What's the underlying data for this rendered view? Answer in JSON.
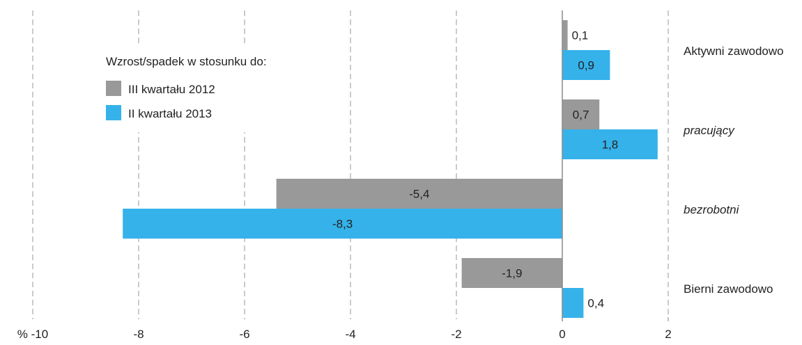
{
  "chart_data": {
    "type": "bar",
    "orientation": "horizontal",
    "categories": [
      "Aktywni zawodowo",
      "pracujący",
      "bezrobotni",
      "Bierni zawodowo"
    ],
    "category_italic": [
      false,
      true,
      true,
      false
    ],
    "legend_title": "Wzrost/spadek w stosunku do:",
    "series": [
      {
        "name": "III kwartału 2012",
        "color": "#999999",
        "values": [
          0.1,
          0.7,
          -5.4,
          -1.9
        ],
        "value_labels": [
          "0,1",
          "0,7",
          "-5,4",
          "-1,9"
        ]
      },
      {
        "name": "II kwartału 2013",
        "color": "#35b2ea",
        "values": [
          0.9,
          1.8,
          -8.3,
          0.4
        ],
        "value_labels": [
          "0,9",
          "1,8",
          "-8,3",
          "0,4"
        ]
      }
    ],
    "xlim": [
      -10,
      2
    ],
    "xticks": [
      -10,
      -8,
      -6,
      -4,
      -2,
      0,
      2
    ],
    "xtick_labels": [
      "% -10",
      "-8",
      "-6",
      "-4",
      "-2",
      "0",
      "2"
    ],
    "grid": "vertical-dashed",
    "legend_position": "top-left"
  }
}
